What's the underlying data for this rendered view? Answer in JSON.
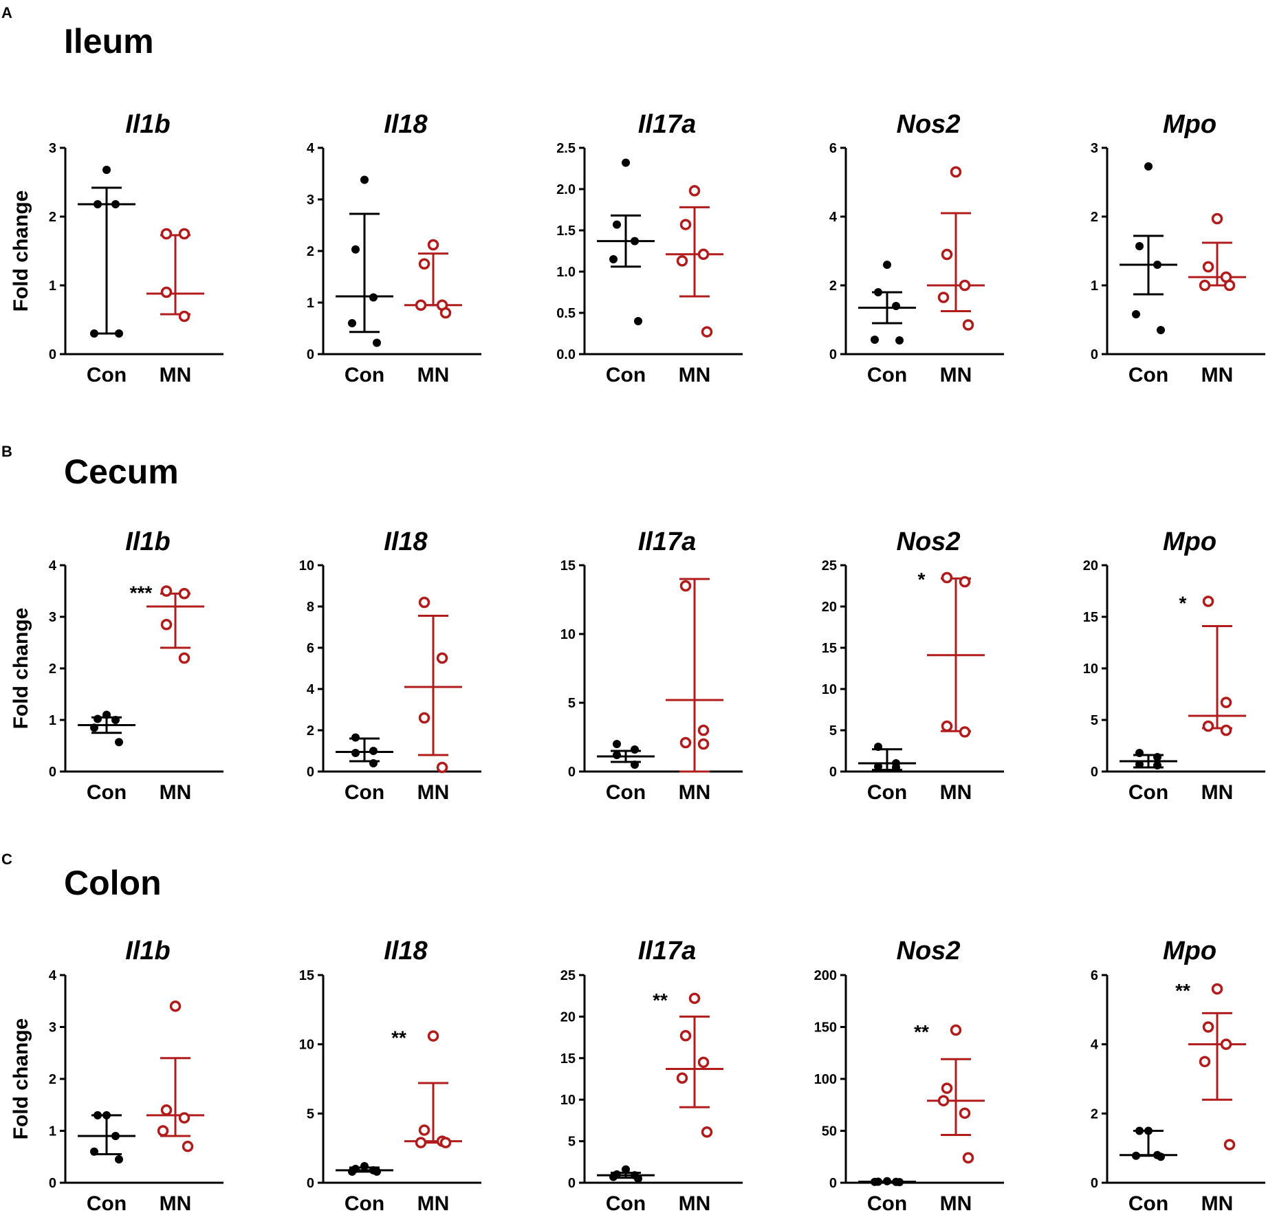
{
  "colors": {
    "con": "#000000",
    "mn": "#b01c1c"
  },
  "y_axis_label": "Fold change",
  "groups": [
    "Con",
    "MN"
  ],
  "panels": [
    {
      "letter": "A",
      "tissue": "Ileum"
    },
    {
      "letter": "B",
      "tissue": "Cecum"
    },
    {
      "letter": "C",
      "tissue": "Colon"
    }
  ],
  "chart_data": [
    {
      "type": "scatter",
      "panel": "A",
      "tissue": "Ileum",
      "title": "Il1b",
      "ylabel": "Fold change",
      "ylim": [
        0,
        3
      ],
      "yticks": [
        "0",
        "1",
        "2",
        "3"
      ],
      "categories": [
        "Con",
        "MN"
      ],
      "series": [
        {
          "name": "Con",
          "points": [
            2.68,
            2.18,
            2.18,
            0.3,
            0.3
          ],
          "mean": 2.18,
          "err_low": 0.3,
          "err_high": 2.42
        },
        {
          "name": "MN",
          "points": [
            1.75,
            1.75,
            0.9,
            0.55
          ],
          "mean": 0.88,
          "err_low": 0.58,
          "err_high": 1.73
        }
      ],
      "significance": ""
    },
    {
      "type": "scatter",
      "panel": "A",
      "tissue": "Ileum",
      "title": "Il18",
      "ylabel": "",
      "ylim": [
        0,
        4
      ],
      "yticks": [
        "0",
        "1",
        "2",
        "3",
        "4"
      ],
      "categories": [
        "Con",
        "MN"
      ],
      "series": [
        {
          "name": "Con",
          "points": [
            3.38,
            2.03,
            1.1,
            0.6,
            0.22
          ],
          "mean": 1.12,
          "err_low": 0.43,
          "err_high": 2.72
        },
        {
          "name": "MN",
          "points": [
            2.12,
            1.75,
            0.95,
            0.95,
            0.8
          ],
          "mean": 0.95,
          "err_low": 0.95,
          "err_high": 1.95
        }
      ],
      "significance": ""
    },
    {
      "type": "scatter",
      "panel": "A",
      "tissue": "Ileum",
      "title": "Il17a",
      "ylabel": "",
      "ylim": [
        0,
        2.5
      ],
      "yticks": [
        "0.0",
        "0.5",
        "1.0",
        "1.5",
        "2.0",
        "2.5"
      ],
      "categories": [
        "Con",
        "MN"
      ],
      "series": [
        {
          "name": "Con",
          "points": [
            2.32,
            1.57,
            1.37,
            1.15,
            0.4
          ],
          "mean": 1.37,
          "err_low": 1.06,
          "err_high": 1.68
        },
        {
          "name": "MN",
          "points": [
            1.98,
            1.57,
            1.21,
            1.13,
            0.27
          ],
          "mean": 1.21,
          "err_low": 0.7,
          "err_high": 1.78
        }
      ],
      "significance": ""
    },
    {
      "type": "scatter",
      "panel": "A",
      "tissue": "Ileum",
      "title": "Nos2",
      "ylabel": "",
      "ylim": [
        0,
        6
      ],
      "yticks": [
        "0",
        "2",
        "4",
        "6"
      ],
      "categories": [
        "Con",
        "MN"
      ],
      "series": [
        {
          "name": "Con",
          "points": [
            2.6,
            1.8,
            1.4,
            0.42,
            0.4
          ],
          "mean": 1.35,
          "err_low": 0.9,
          "err_high": 1.8
        },
        {
          "name": "MN",
          "points": [
            5.3,
            2.9,
            2.0,
            1.65,
            0.85
          ],
          "mean": 2.0,
          "err_low": 1.25,
          "err_high": 4.1
        }
      ],
      "significance": ""
    },
    {
      "type": "scatter",
      "panel": "A",
      "tissue": "Ileum",
      "title": "Mpo",
      "ylabel": "",
      "ylim": [
        0,
        3
      ],
      "yticks": [
        "0",
        "1",
        "2",
        "3"
      ],
      "categories": [
        "Con",
        "MN"
      ],
      "series": [
        {
          "name": "Con",
          "points": [
            2.73,
            1.57,
            1.3,
            0.58,
            0.35
          ],
          "mean": 1.3,
          "err_low": 0.87,
          "err_high": 1.72
        },
        {
          "name": "MN",
          "points": [
            1.97,
            1.27,
            1.12,
            1.0,
            1.0
          ],
          "mean": 1.12,
          "err_low": 1.0,
          "err_high": 1.62
        }
      ],
      "significance": ""
    },
    {
      "type": "scatter",
      "panel": "B",
      "tissue": "Cecum",
      "title": "Il1b",
      "ylabel": "Fold change",
      "ylim": [
        0,
        4
      ],
      "yticks": [
        "0",
        "1",
        "2",
        "3",
        "4"
      ],
      "categories": [
        "Con",
        "MN"
      ],
      "series": [
        {
          "name": "Con",
          "points": [
            1.1,
            1.02,
            1.0,
            0.85,
            0.57
          ],
          "mean": 0.9,
          "err_low": 0.75,
          "err_high": 1.05
        },
        {
          "name": "MN",
          "points": [
            3.5,
            3.45,
            2.85,
            2.2
          ],
          "mean": 3.2,
          "err_low": 2.4,
          "err_high": 3.45
        }
      ],
      "significance": "***"
    },
    {
      "type": "scatter",
      "panel": "B",
      "tissue": "Cecum",
      "title": "Il18",
      "ylabel": "",
      "ylim": [
        0,
        10
      ],
      "yticks": [
        "0",
        "2",
        "4",
        "6",
        "8",
        "10"
      ],
      "categories": [
        "Con",
        "MN"
      ],
      "series": [
        {
          "name": "Con",
          "points": [
            1.65,
            1.0,
            0.9,
            0.4
          ],
          "mean": 0.95,
          "err_low": 0.5,
          "err_high": 1.6
        },
        {
          "name": "MN",
          "points": [
            8.2,
            5.5,
            2.6,
            0.2
          ],
          "mean": 4.1,
          "err_low": 0.8,
          "err_high": 7.55
        }
      ],
      "significance": ""
    },
    {
      "type": "scatter",
      "panel": "B",
      "tissue": "Cecum",
      "title": "Il17a",
      "ylabel": "",
      "ylim": [
        0,
        15
      ],
      "yticks": [
        "0",
        "5",
        "10",
        "15"
      ],
      "categories": [
        "Con",
        "MN"
      ],
      "series": [
        {
          "name": "Con",
          "points": [
            2.0,
            1.6,
            1.2,
            0.5
          ],
          "mean": 1.1,
          "err_low": 0.7,
          "err_high": 1.5
        },
        {
          "name": "MN",
          "points": [
            13.5,
            3.0,
            2.1,
            2.0
          ],
          "mean": 5.2,
          "err_low": 0.0,
          "err_high": 14.0
        }
      ],
      "significance": ""
    },
    {
      "type": "scatter",
      "panel": "B",
      "tissue": "Cecum",
      "title": "Nos2",
      "ylabel": "",
      "ylim": [
        0,
        25
      ],
      "yticks": [
        "0",
        "5",
        "10",
        "15",
        "20",
        "25"
      ],
      "categories": [
        "Con",
        "MN"
      ],
      "series": [
        {
          "name": "Con",
          "points": [
            3.0,
            1.0,
            0.6,
            0.5
          ],
          "mean": 1.0,
          "err_low": 0.2,
          "err_high": 2.7
        },
        {
          "name": "MN",
          "points": [
            23.5,
            23.0,
            5.5,
            4.8
          ],
          "mean": 14.1,
          "err_low": 4.9,
          "err_high": 23.4
        }
      ],
      "significance": "*"
    },
    {
      "type": "scatter",
      "panel": "B",
      "tissue": "Cecum",
      "title": "Mpo",
      "ylabel": "",
      "ylim": [
        0,
        20
      ],
      "yticks": [
        "0",
        "5",
        "10",
        "15",
        "20"
      ],
      "categories": [
        "Con",
        "MN"
      ],
      "series": [
        {
          "name": "Con",
          "points": [
            1.8,
            1.4,
            0.7,
            0.6
          ],
          "mean": 1.0,
          "err_low": 0.4,
          "err_high": 1.6
        },
        {
          "name": "MN",
          "points": [
            16.5,
            6.7,
            4.4,
            4.0
          ],
          "mean": 5.4,
          "err_low": 4.2,
          "err_high": 14.1
        }
      ],
      "significance": "*"
    },
    {
      "type": "scatter",
      "panel": "C",
      "tissue": "Colon",
      "title": "Il1b",
      "ylabel": "Fold change",
      "ylim": [
        0,
        4
      ],
      "yticks": [
        "0",
        "1",
        "2",
        "3",
        "4"
      ],
      "categories": [
        "Con",
        "MN"
      ],
      "series": [
        {
          "name": "Con",
          "points": [
            1.3,
            1.3,
            0.9,
            0.6,
            0.45
          ],
          "mean": 0.9,
          "err_low": 0.55,
          "err_high": 1.3
        },
        {
          "name": "MN",
          "points": [
            3.4,
            1.4,
            1.25,
            1.0,
            0.7
          ],
          "mean": 1.3,
          "err_low": 0.9,
          "err_high": 2.4
        }
      ],
      "significance": ""
    },
    {
      "type": "scatter",
      "panel": "C",
      "tissue": "Colon",
      "title": "Il18",
      "ylabel": "",
      "ylim": [
        0,
        15
      ],
      "yticks": [
        "0",
        "5",
        "10",
        "15"
      ],
      "categories": [
        "Con",
        "MN"
      ],
      "series": [
        {
          "name": "Con",
          "points": [
            1.2,
            1.0,
            0.9,
            0.8,
            0.8
          ],
          "mean": 0.9,
          "err_low": 0.8,
          "err_high": 1.1
        },
        {
          "name": "MN",
          "points": [
            10.6,
            3.8,
            3.0,
            2.9,
            2.9
          ],
          "mean": 3.0,
          "err_low": 2.9,
          "err_high": 7.2
        }
      ],
      "significance": "**"
    },
    {
      "type": "scatter",
      "panel": "C",
      "tissue": "Colon",
      "title": "Il17a",
      "ylabel": "",
      "ylim": [
        0,
        25
      ],
      "yticks": [
        "0",
        "5",
        "10",
        "15",
        "20",
        "25"
      ],
      "categories": [
        "Con",
        "MN"
      ],
      "series": [
        {
          "name": "Con",
          "points": [
            1.6,
            1.0,
            0.9,
            0.7,
            0.5
          ],
          "mean": 0.9,
          "err_low": 0.6,
          "err_high": 1.2
        },
        {
          "name": "MN",
          "points": [
            22.2,
            17.7,
            14.5,
            12.6,
            6.1
          ],
          "mean": 13.7,
          "err_low": 9.1,
          "err_high": 20.0
        }
      ],
      "significance": "**"
    },
    {
      "type": "scatter",
      "panel": "C",
      "tissue": "Colon",
      "title": "Nos2",
      "ylabel": "",
      "ylim": [
        0,
        200
      ],
      "yticks": [
        "0",
        "50",
        "100",
        "150",
        "200"
      ],
      "categories": [
        "Con",
        "MN"
      ],
      "series": [
        {
          "name": "Con",
          "points": [
            1.5,
            1.0,
            0.8,
            0.8,
            0.6
          ],
          "mean": 1.0,
          "err_low": 0.7,
          "err_high": 1.2
        },
        {
          "name": "MN",
          "points": [
            147,
            91,
            67,
            79,
            24
          ],
          "mean": 79,
          "err_low": 46,
          "err_high": 119
        }
      ],
      "significance": "**"
    },
    {
      "type": "scatter",
      "panel": "C",
      "tissue": "Colon",
      "title": "Mpo",
      "ylabel": "",
      "ylim": [
        0,
        6
      ],
      "yticks": [
        "0",
        "2",
        "4",
        "6"
      ],
      "categories": [
        "Con",
        "MN"
      ],
      "series": [
        {
          "name": "Con",
          "points": [
            1.5,
            1.5,
            0.8,
            0.78,
            0.75
          ],
          "mean": 0.8,
          "err_low": 0.78,
          "err_high": 1.5
        },
        {
          "name": "MN",
          "points": [
            5.6,
            4.5,
            4.0,
            3.5,
            1.1
          ],
          "mean": 4.0,
          "err_low": 2.4,
          "err_high": 4.9
        }
      ],
      "significance": "**"
    }
  ]
}
